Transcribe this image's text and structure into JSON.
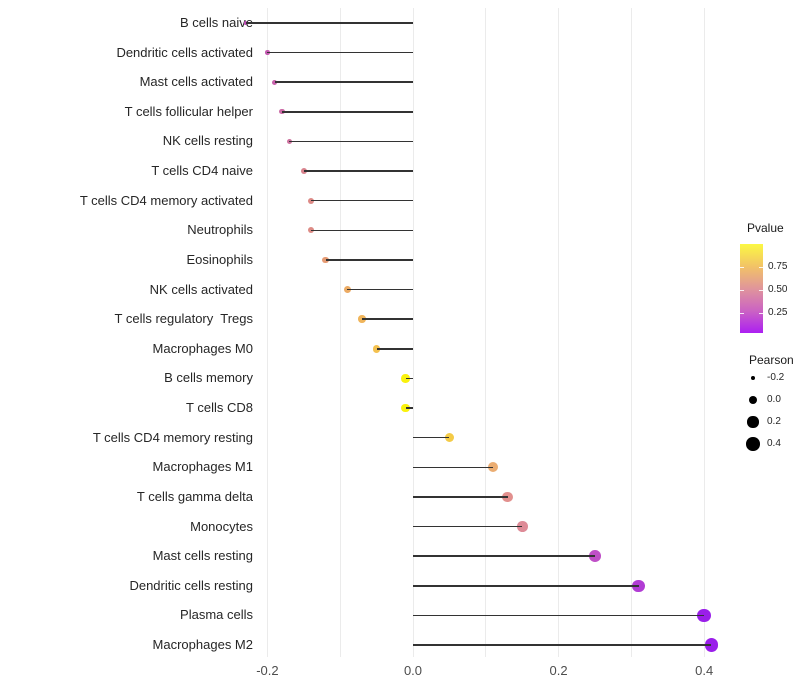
{
  "chart_data": {
    "type": "lollipop",
    "title": "",
    "xlabel": "",
    "ylabel": "",
    "x_ticks": [
      {
        "label": "-0.2",
        "value": -0.2
      },
      {
        "label": "0.0",
        "value": 0.0
      },
      {
        "label": "0.2",
        "value": 0.2
      },
      {
        "label": "0.4",
        "value": 0.4
      }
    ],
    "gridline_values": [
      -0.2,
      -0.1,
      0.0,
      0.1,
      0.2,
      0.3,
      0.4
    ],
    "xlim": [
      -0.26,
      0.44
    ],
    "grid": "vertical-only",
    "points": [
      {
        "label": "B cells naive",
        "pearson": -0.23,
        "color": "#BC4DB3"
      },
      {
        "label": "Dendritic cells activated",
        "pearson": -0.2,
        "color": "#C45BB0"
      },
      {
        "label": "Mast cells activated",
        "pearson": -0.19,
        "color": "#C763AC"
      },
      {
        "label": "T cells follicular helper",
        "pearson": -0.18,
        "color": "#CB6BA6"
      },
      {
        "label": "NK cells resting",
        "pearson": -0.17,
        "color": "#CE729F"
      },
      {
        "label": "T cells CD4 naive",
        "pearson": -0.15,
        "color": "#D8838D"
      },
      {
        "label": "T cells CD4 memory activated",
        "pearson": -0.14,
        "color": "#DD8A86"
      },
      {
        "label": "Neutrophils",
        "pearson": -0.14,
        "color": "#DD8B85"
      },
      {
        "label": "Eosinophils",
        "pearson": -0.12,
        "color": "#E59B74"
      },
      {
        "label": "NK cells activated",
        "pearson": -0.09,
        "color": "#ECAB64"
      },
      {
        "label": "T cells regulatory  Tregs",
        "pearson": -0.07,
        "color": "#F0B55B"
      },
      {
        "label": "Macrophages M0",
        "pearson": -0.05,
        "color": "#F4C14F"
      },
      {
        "label": "B cells memory",
        "pearson": -0.01,
        "color": "#FAF20D"
      },
      {
        "label": "T cells CD8",
        "pearson": -0.01,
        "color": "#FAF20D"
      },
      {
        "label": "T cells CD4 memory resting",
        "pearson": 0.05,
        "color": "#F4CB47"
      },
      {
        "label": "Macrophages M1",
        "pearson": 0.11,
        "color": "#EBAD72"
      },
      {
        "label": "T cells gamma delta",
        "pearson": 0.13,
        "color": "#E2908E"
      },
      {
        "label": "Monocytes",
        "pearson": 0.15,
        "color": "#DE8B97"
      },
      {
        "label": "Mast cells resting",
        "pearson": 0.25,
        "color": "#BF4FC7"
      },
      {
        "label": "Dendritic cells resting",
        "pearson": 0.31,
        "color": "#B13CD4"
      },
      {
        "label": "Plasma cells",
        "pearson": 0.4,
        "color": "#9A1FE9"
      },
      {
        "label": "Macrophages M2",
        "pearson": 0.41,
        "color": "#9A1EEA"
      }
    ],
    "legend_pvalue": {
      "title": "Pvalue",
      "tick_labels": [
        "0.75",
        "0.50",
        "0.25"
      ],
      "gradient_top_to_bottom": [
        "#FBF843",
        "#F2C366",
        "#E0959B",
        "#CB63C3",
        "#AC1FF2"
      ]
    },
    "legend_pearson": {
      "title": "Pearson",
      "items": [
        {
          "label": "-0.2",
          "value": -0.2
        },
        {
          "label": "0.0",
          "value": 0.0
        },
        {
          "label": "0.2",
          "value": 0.2
        },
        {
          "label": "0.4",
          "value": 0.4
        }
      ],
      "key_color": "#000000"
    }
  }
}
